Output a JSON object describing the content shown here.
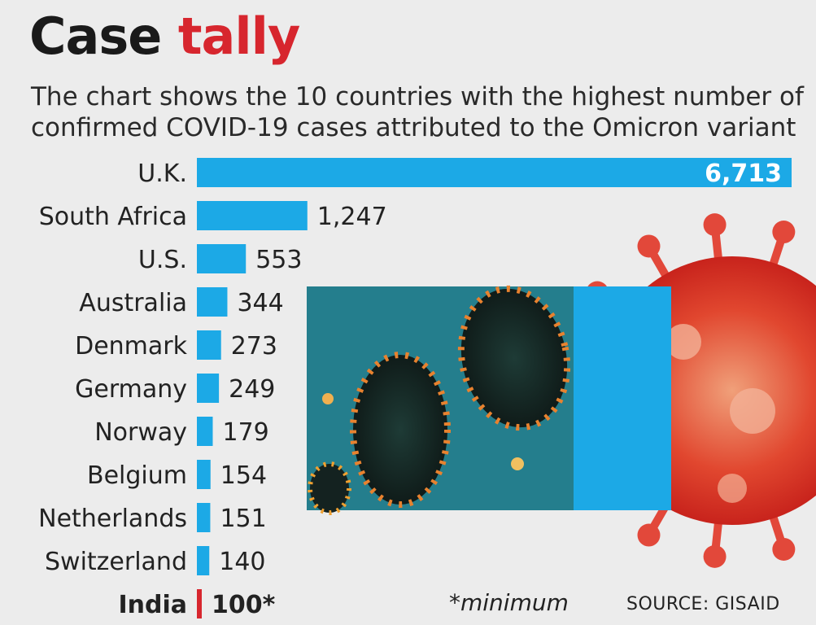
{
  "title": {
    "word1": "Case",
    "word2": "tally"
  },
  "subtitle": "The chart shows the 10 countries with the highest number of confirmed COVID-19 cases attributed to the Omicron variant",
  "colors": {
    "bar": "#1ca9e6",
    "highlight": "#d7262e",
    "title_accent": "#d7262e"
  },
  "footnote": "*minimum",
  "source": "SOURCE: GISAID",
  "chart_data": {
    "type": "bar",
    "orientation": "horizontal",
    "categories": [
      "U.K.",
      "South Africa",
      "U.S.",
      "Australia",
      "Denmark",
      "Germany",
      "Norway",
      "Belgium",
      "Netherlands",
      "Switzerland",
      "India"
    ],
    "values": [
      6713,
      1247,
      553,
      344,
      273,
      249,
      179,
      154,
      151,
      140,
      100
    ],
    "value_labels": [
      "6,713",
      "1,247",
      "553",
      "344",
      "273",
      "249",
      "179",
      "154",
      "151",
      "140",
      "100*"
    ],
    "highlight_category": "India",
    "title": "Case tally",
    "xlabel": "",
    "ylabel": "",
    "grid": false,
    "legend": "none"
  },
  "images": {
    "micrograph": "virus-micrograph-image",
    "illustration": "coronavirus-illustration"
  }
}
